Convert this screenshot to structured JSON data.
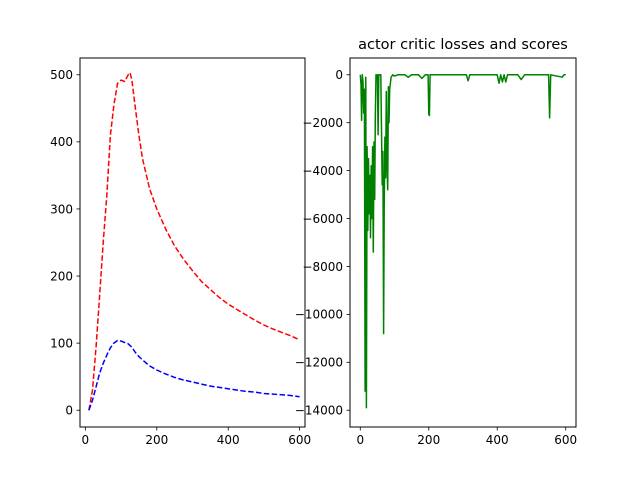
{
  "chart_data": [
    {
      "type": "line",
      "title": "",
      "xlabel": "",
      "ylabel": "",
      "xlim": [
        -15,
        615
      ],
      "ylim": [
        -25,
        525
      ],
      "xticks": [
        0,
        200,
        400,
        600
      ],
      "yticks": [
        0,
        100,
        200,
        300,
        400,
        500
      ],
      "grid": false,
      "series": [
        {
          "color": "#ff0000",
          "style": "dashed",
          "points": [
            [
              10,
              0
            ],
            [
              20,
              30
            ],
            [
              30,
              95
            ],
            [
              40,
              170
            ],
            [
              50,
              250
            ],
            [
              60,
              320
            ],
            [
              70,
              410
            ],
            [
              80,
              455
            ],
            [
              90,
              487
            ],
            [
              100,
              492
            ],
            [
              110,
              490
            ],
            [
              120,
              500
            ],
            [
              125,
              503
            ],
            [
              130,
              493
            ],
            [
              140,
              450
            ],
            [
              150,
              410
            ],
            [
              160,
              375
            ],
            [
              180,
              330
            ],
            [
              200,
              300
            ],
            [
              225,
              270
            ],
            [
              250,
              245
            ],
            [
              275,
              225
            ],
            [
              300,
              208
            ],
            [
              325,
              192
            ],
            [
              350,
              180
            ],
            [
              375,
              168
            ],
            [
              400,
              158
            ],
            [
              425,
              150
            ],
            [
              450,
              142
            ],
            [
              475,
              134
            ],
            [
              500,
              127
            ],
            [
              525,
              121
            ],
            [
              550,
              116
            ],
            [
              575,
              111
            ],
            [
              600,
              105
            ]
          ]
        },
        {
          "color": "#0000ff",
          "style": "dashed",
          "points": [
            [
              10,
              0
            ],
            [
              20,
              15
            ],
            [
              30,
              35
            ],
            [
              40,
              55
            ],
            [
              50,
              70
            ],
            [
              60,
              82
            ],
            [
              70,
              93
            ],
            [
              80,
              100
            ],
            [
              90,
              104
            ],
            [
              100,
              103
            ],
            [
              110,
              101
            ],
            [
              120,
              99
            ],
            [
              130,
              94
            ],
            [
              140,
              86
            ],
            [
              150,
              80
            ],
            [
              160,
              75
            ],
            [
              180,
              66
            ],
            [
              200,
              60
            ],
            [
              225,
              54
            ],
            [
              250,
              49
            ],
            [
              275,
              45
            ],
            [
              300,
              42
            ],
            [
              325,
              39
            ],
            [
              350,
              36
            ],
            [
              375,
              34
            ],
            [
              400,
              32
            ],
            [
              425,
              30
            ],
            [
              450,
              28
            ],
            [
              475,
              27
            ],
            [
              500,
              25
            ],
            [
              525,
              24
            ],
            [
              550,
              23
            ],
            [
              575,
              22
            ],
            [
              600,
              20
            ]
          ]
        }
      ]
    },
    {
      "type": "line",
      "title": "actor critic losses and scores",
      "xlabel": "",
      "ylabel": "",
      "xlim": [
        -30,
        630
      ],
      "ylim": [
        -14700,
        700
      ],
      "xticks": [
        0,
        200,
        400,
        600
      ],
      "yticks": [
        0,
        -2000,
        -4000,
        -6000,
        -8000,
        -10000,
        -12000,
        -14000
      ],
      "grid": false,
      "series": [
        {
          "color": "#008000",
          "style": "solid",
          "points": [
            [
              0,
              0
            ],
            [
              2,
              -400
            ],
            [
              4,
              -1900
            ],
            [
              6,
              0
            ],
            [
              8,
              -300
            ],
            [
              10,
              -1600
            ],
            [
              12,
              -600
            ],
            [
              14,
              -13200
            ],
            [
              16,
              -100
            ],
            [
              18,
              -13900
            ],
            [
              20,
              -3000
            ],
            [
              22,
              -6500
            ],
            [
              24,
              -3500
            ],
            [
              26,
              -5800
            ],
            [
              28,
              -4200
            ],
            [
              30,
              -6800
            ],
            [
              32,
              -3800
            ],
            [
              34,
              -6000
            ],
            [
              36,
              -3000
            ],
            [
              38,
              -7400
            ],
            [
              40,
              -2800
            ],
            [
              42,
              -5200
            ],
            [
              44,
              -1800
            ],
            [
              46,
              0
            ],
            [
              48,
              -200
            ],
            [
              50,
              0
            ],
            [
              52,
              -2500
            ],
            [
              54,
              0
            ],
            [
              56,
              0
            ],
            [
              60,
              0
            ],
            [
              64,
              -4600
            ],
            [
              66,
              -3200
            ],
            [
              68,
              -10800
            ],
            [
              70,
              -5600
            ],
            [
              72,
              -2600
            ],
            [
              74,
              -4300
            ],
            [
              76,
              -700
            ],
            [
              78,
              -3800
            ],
            [
              80,
              -4800
            ],
            [
              82,
              -500
            ],
            [
              84,
              -2000
            ],
            [
              86,
              -600
            ],
            [
              90,
              -100
            ],
            [
              95,
              0
            ],
            [
              100,
              -50
            ],
            [
              110,
              0
            ],
            [
              130,
              0
            ],
            [
              140,
              -100
            ],
            [
              150,
              0
            ],
            [
              170,
              0
            ],
            [
              180,
              -150
            ],
            [
              190,
              0
            ],
            [
              198,
              0
            ],
            [
              200,
              -1650
            ],
            [
              202,
              -1700
            ],
            [
              204,
              0
            ],
            [
              250,
              0
            ],
            [
              310,
              0
            ],
            [
              315,
              -250
            ],
            [
              320,
              0
            ],
            [
              400,
              0
            ],
            [
              405,
              -350
            ],
            [
              410,
              0
            ],
            [
              415,
              -300
            ],
            [
              420,
              0
            ],
            [
              425,
              -300
            ],
            [
              430,
              0
            ],
            [
              460,
              0
            ],
            [
              470,
              -200
            ],
            [
              480,
              0
            ],
            [
              550,
              0
            ],
            [
              553,
              -1800
            ],
            [
              556,
              0
            ],
            [
              590,
              -100
            ],
            [
              595,
              0
            ],
            [
              600,
              0
            ]
          ]
        }
      ]
    }
  ]
}
